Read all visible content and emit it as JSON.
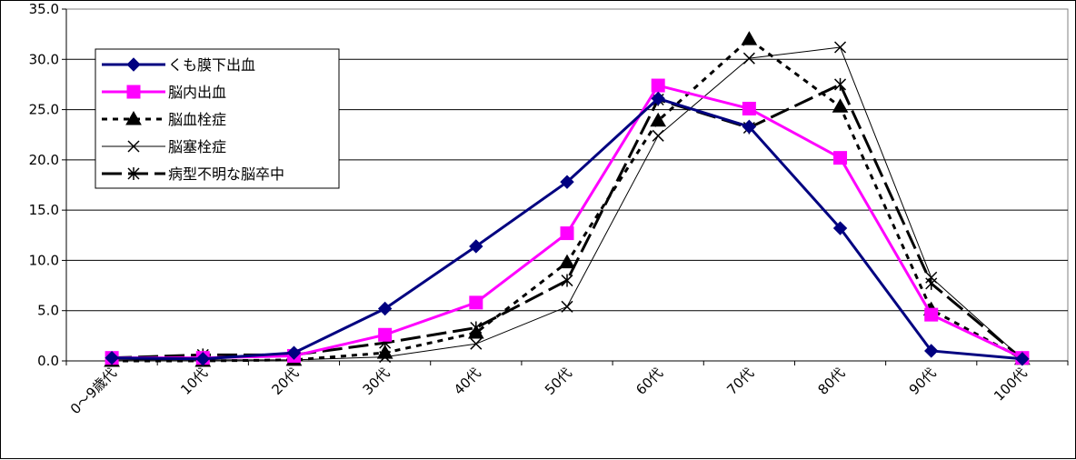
{
  "chart_data": {
    "type": "line",
    "categories": [
      "0～9歳代",
      "10代",
      "20代",
      "30代",
      "40代",
      "50代",
      "60代",
      "70代",
      "80代",
      "90代",
      "100代"
    ],
    "ylim": [
      0,
      35
    ],
    "yticks": [
      "0.0",
      "5.0",
      "10.0",
      "15.0",
      "20.0",
      "25.0",
      "30.0",
      "35.0"
    ],
    "grid": true,
    "legend_position": "top-left",
    "series": [
      {
        "name": "くも膜下出血",
        "color": "#000080",
        "marker": "diamond",
        "dash": "solid",
        "width": 3,
        "values": [
          0.3,
          0.2,
          0.8,
          5.2,
          11.4,
          17.8,
          26.1,
          23.3,
          13.2,
          1.0,
          0.2
        ]
      },
      {
        "name": "脳内出血",
        "color": "#FF00FF",
        "marker": "square",
        "dash": "solid",
        "width": 3,
        "values": [
          0.3,
          0.3,
          0.5,
          2.6,
          5.8,
          12.7,
          27.4,
          25.1,
          20.2,
          4.6,
          0.3
        ]
      },
      {
        "name": "脳血栓症",
        "color": "#000000",
        "marker": "triangle",
        "dash": "short",
        "width": 3,
        "values": [
          0.0,
          0.0,
          0.1,
          0.8,
          2.8,
          9.8,
          23.9,
          32.0,
          25.3,
          5.1,
          0.2
        ]
      },
      {
        "name": "脳塞栓症",
        "color": "#000000",
        "marker": "x",
        "dash": "solid",
        "width": 1,
        "values": [
          0.1,
          0.1,
          0.1,
          0.4,
          1.7,
          5.4,
          22.4,
          30.1,
          31.2,
          8.3,
          0.2
        ]
      },
      {
        "name": "病型不明な脳卒中",
        "color": "#000000",
        "marker": "star",
        "dash": "long",
        "width": 3,
        "values": [
          0.3,
          0.6,
          0.6,
          1.8,
          3.3,
          8.0,
          26.0,
          23.2,
          27.5,
          7.7,
          0.2
        ]
      }
    ]
  }
}
